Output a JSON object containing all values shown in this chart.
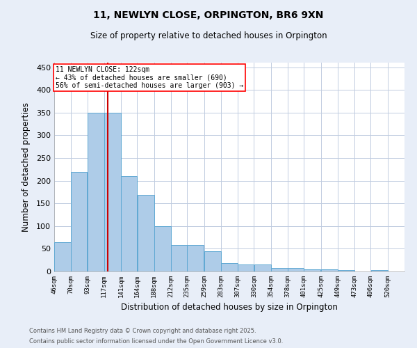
{
  "title1": "11, NEWLYN CLOSE, ORPINGTON, BR6 9XN",
  "title2": "Size of property relative to detached houses in Orpington",
  "xlabel": "Distribution of detached houses by size in Orpington",
  "ylabel": "Number of detached properties",
  "footnote1": "Contains HM Land Registry data © Crown copyright and database right 2025.",
  "footnote2": "Contains public sector information licensed under the Open Government Licence v3.0.",
  "bar_left_edges": [
    46,
    70,
    93,
    117,
    141,
    164,
    188,
    212,
    235,
    259,
    283,
    307,
    330,
    354,
    378,
    401,
    425,
    449,
    473,
    496
  ],
  "bar_widths": [
    24,
    23,
    24,
    24,
    23,
    24,
    24,
    23,
    24,
    24,
    24,
    23,
    24,
    24,
    23,
    24,
    24,
    24,
    23,
    24
  ],
  "bar_heights": [
    65,
    220,
    350,
    350,
    210,
    168,
    99,
    59,
    59,
    44,
    19,
    16,
    15,
    7,
    7,
    5,
    4,
    3,
    0,
    3
  ],
  "tick_labels": [
    "46sqm",
    "70sqm",
    "93sqm",
    "117sqm",
    "141sqm",
    "164sqm",
    "188sqm",
    "212sqm",
    "235sqm",
    "259sqm",
    "283sqm",
    "307sqm",
    "330sqm",
    "354sqm",
    "378sqm",
    "401sqm",
    "425sqm",
    "449sqm",
    "473sqm",
    "496sqm",
    "520sqm"
  ],
  "tick_positions": [
    46,
    70,
    93,
    117,
    141,
    164,
    188,
    212,
    235,
    259,
    283,
    307,
    330,
    354,
    378,
    401,
    425,
    449,
    473,
    496,
    520
  ],
  "bar_color": "#aecce8",
  "bar_edge_color": "#5fa8d3",
  "red_line_x": 122,
  "red_line_color": "#cc0000",
  "annotation_line1": "11 NEWLYN CLOSE: 122sqm",
  "annotation_line2": "← 43% of detached houses are smaller (690)",
  "annotation_line3": "56% of semi-detached houses are larger (903) →",
  "ylim": [
    0,
    460
  ],
  "xlim_left": 46,
  "xlim_right": 544,
  "yticks": [
    0,
    50,
    100,
    150,
    200,
    250,
    300,
    350,
    400,
    450
  ],
  "background_color": "#e8eef8",
  "plot_background_color": "#ffffff",
  "grid_color": "#c0cce0"
}
